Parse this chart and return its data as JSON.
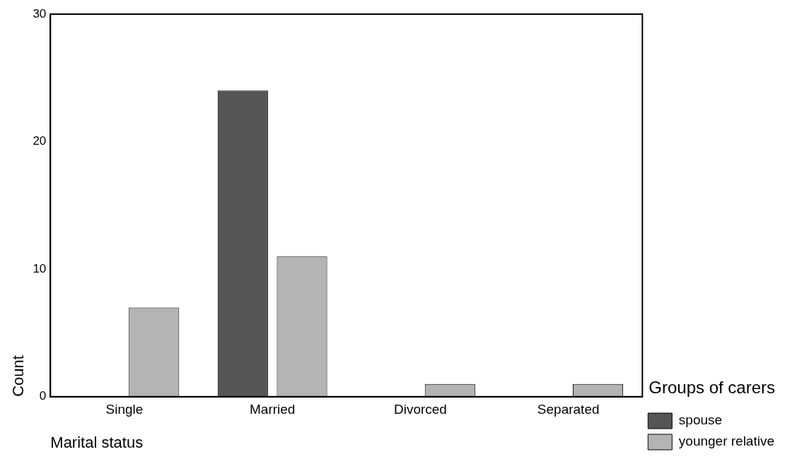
{
  "chart_data": {
    "type": "bar",
    "xlabel": "Marital status",
    "ylabel": "Count",
    "legend_title": "Groups of carers",
    "legend": "right",
    "grid": false,
    "categories": [
      "Single",
      "Married",
      "Divorced",
      "Separated"
    ],
    "series": [
      {
        "name": "spouse",
        "color": "#555555",
        "values": [
          0,
          24,
          0,
          0
        ]
      },
      {
        "name": "younger relative",
        "color": "#b4b4b4",
        "values": [
          7,
          11,
          1,
          1
        ]
      }
    ],
    "ylim": [
      0,
      30
    ],
    "yticks": [
      0,
      10,
      20,
      30
    ]
  }
}
